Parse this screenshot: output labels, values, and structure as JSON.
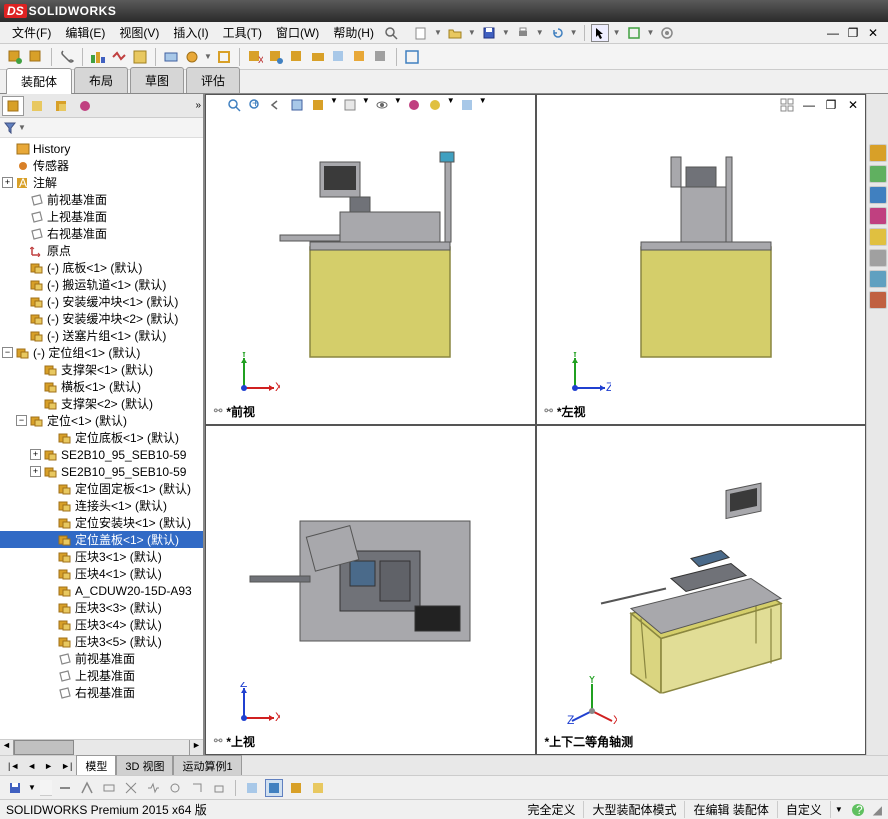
{
  "app": {
    "name": "SOLIDWORKS",
    "logo_ds": "DS"
  },
  "menubar": {
    "items": [
      "文件(F)",
      "编辑(E)",
      "视图(V)",
      "插入(I)",
      "工具(T)",
      "窗口(W)",
      "帮助(H)"
    ]
  },
  "ribbon": {
    "tabs": [
      "装配体",
      "布局",
      "草图",
      "评估"
    ],
    "active_index": 0
  },
  "sidebar": {
    "filter_icon": "▼",
    "tree": [
      {
        "indent": 0,
        "expander": "",
        "icon": "history",
        "icon_color": "#e8a838",
        "label": "History",
        "selected": false
      },
      {
        "indent": 0,
        "expander": "",
        "icon": "sensor",
        "icon_color": "#d88028",
        "label": "传感器",
        "selected": false
      },
      {
        "indent": 0,
        "expander": "+",
        "icon": "annot",
        "icon_color": "#d8a028",
        "label": "注解",
        "selected": false
      },
      {
        "indent": 1,
        "expander": "",
        "icon": "plane",
        "icon_color": "#888",
        "label": "前视基准面",
        "selected": false
      },
      {
        "indent": 1,
        "expander": "",
        "icon": "plane",
        "icon_color": "#888",
        "label": "上视基准面",
        "selected": false
      },
      {
        "indent": 1,
        "expander": "",
        "icon": "plane",
        "icon_color": "#888",
        "label": "右视基准面",
        "selected": false
      },
      {
        "indent": 1,
        "expander": "",
        "icon": "origin",
        "icon_color": "#c04040",
        "label": "原点",
        "selected": false
      },
      {
        "indent": 1,
        "expander": "",
        "icon": "asm",
        "icon_color": "#d8a028",
        "label": "(-) 底板<1> (默认)",
        "selected": false
      },
      {
        "indent": 1,
        "expander": "",
        "icon": "asm",
        "icon_color": "#d8a028",
        "label": "(-) 搬运轨道<1> (默认)",
        "selected": false
      },
      {
        "indent": 1,
        "expander": "",
        "icon": "asm",
        "icon_color": "#d8a028",
        "label": "(-) 安装缓冲块<1> (默认)",
        "selected": false
      },
      {
        "indent": 1,
        "expander": "",
        "icon": "asm",
        "icon_color": "#d8a028",
        "label": "(-) 安装缓冲块<2> (默认)",
        "selected": false
      },
      {
        "indent": 1,
        "expander": "",
        "icon": "asm",
        "icon_color": "#d8a028",
        "label": "(-) 送塞片组<1> (默认)",
        "selected": false
      },
      {
        "indent": 0,
        "expander": "-",
        "icon": "asm",
        "icon_color": "#d8a028",
        "label": "(-) 定位组<1> (默认)",
        "selected": false
      },
      {
        "indent": 2,
        "expander": "",
        "icon": "asm",
        "icon_color": "#d8a028",
        "label": "支撑架<1> (默认)",
        "selected": false
      },
      {
        "indent": 2,
        "expander": "",
        "icon": "asm",
        "icon_color": "#d8a028",
        "label": "横板<1> (默认)",
        "selected": false
      },
      {
        "indent": 2,
        "expander": "",
        "icon": "asm",
        "icon_color": "#d8a028",
        "label": "支撑架<2> (默认)",
        "selected": false
      },
      {
        "indent": 1,
        "expander": "-",
        "icon": "asm",
        "icon_color": "#d8a028",
        "label": "定位<1> (默认)",
        "selected": false
      },
      {
        "indent": 3,
        "expander": "",
        "icon": "part",
        "icon_color": "#d8a028",
        "label": "定位底板<1> (默认)",
        "selected": false
      },
      {
        "indent": 2,
        "expander": "+",
        "icon": "part",
        "icon_color": "#d8a028",
        "label": "SE2B10_95_SEB10-59",
        "selected": false
      },
      {
        "indent": 2,
        "expander": "+",
        "icon": "part",
        "icon_color": "#d8a028",
        "label": "SE2B10_95_SEB10-59",
        "selected": false
      },
      {
        "indent": 3,
        "expander": "",
        "icon": "part",
        "icon_color": "#d8a028",
        "label": "定位固定板<1> (默认)",
        "selected": false
      },
      {
        "indent": 3,
        "expander": "",
        "icon": "part",
        "icon_color": "#d8a028",
        "label": "连接头<1> (默认)",
        "selected": false
      },
      {
        "indent": 3,
        "expander": "",
        "icon": "part",
        "icon_color": "#d8a028",
        "label": "定位安装块<1> (默认)",
        "selected": false
      },
      {
        "indent": 3,
        "expander": "",
        "icon": "part",
        "icon_color": "#d8a028",
        "label": "定位盖板<1> (默认)",
        "selected": true
      },
      {
        "indent": 3,
        "expander": "",
        "icon": "part",
        "icon_color": "#d8a028",
        "label": "压块3<1> (默认)",
        "selected": false
      },
      {
        "indent": 3,
        "expander": "",
        "icon": "part",
        "icon_color": "#d8a028",
        "label": "压块4<1> (默认)",
        "selected": false
      },
      {
        "indent": 3,
        "expander": "",
        "icon": "part",
        "icon_color": "#d8a028",
        "label": "A_CDUW20-15D-A93",
        "selected": false
      },
      {
        "indent": 3,
        "expander": "",
        "icon": "part",
        "icon_color": "#d8a028",
        "label": "压块3<3> (默认)",
        "selected": false
      },
      {
        "indent": 3,
        "expander": "",
        "icon": "part",
        "icon_color": "#d8a028",
        "label": "压块3<4> (默认)",
        "selected": false
      },
      {
        "indent": 3,
        "expander": "",
        "icon": "part",
        "icon_color": "#d8a028",
        "label": "压块3<5> (默认)",
        "selected": false
      },
      {
        "indent": 3,
        "expander": "",
        "icon": "plane",
        "icon_color": "#888",
        "label": "前视基准面",
        "selected": false
      },
      {
        "indent": 3,
        "expander": "",
        "icon": "plane",
        "icon_color": "#888",
        "label": "上视基准面",
        "selected": false
      },
      {
        "indent": 3,
        "expander": "",
        "icon": "plane",
        "icon_color": "#888",
        "label": "右视基准面",
        "selected": false
      }
    ]
  },
  "bottom_tabs": {
    "items": [
      "模型",
      "3D 视图",
      "运动算例1"
    ],
    "active_index": 0
  },
  "views": {
    "panes": [
      {
        "label": "*前视",
        "triad": {
          "h_axis": "X",
          "h_color": "#d02020",
          "v_axis": "Y",
          "v_color": "#20a020"
        },
        "linked": true
      },
      {
        "label": "*左视",
        "triad": {
          "h_axis": "Z",
          "h_color": "#2040d0",
          "v_axis": "Y",
          "v_color": "#20a020"
        },
        "linked": true
      },
      {
        "label": "*上视",
        "triad": {
          "h_axis": "X",
          "h_color": "#d02020",
          "v_axis": "Z",
          "v_color": "#2040d0"
        },
        "linked": true
      },
      {
        "label": "*上下二等角轴测",
        "triad": {
          "iso": true
        },
        "linked": false
      }
    ],
    "model_colors": {
      "frame": "#d4ce6a",
      "frame_stroke": "#8a8640",
      "machine": "#a8a8ac",
      "machine_dark": "#707278"
    }
  },
  "right_rail_colors": [
    "#d8a028",
    "#60b060",
    "#4080c0",
    "#c04080",
    "#e0c040",
    "#a0a0a0",
    "#60a0c0",
    "#c06040"
  ],
  "statusbar": {
    "version": "SOLIDWORKS Premium 2015 x64 版",
    "cells": [
      "完全定义",
      "大型装配体模式",
      "在编辑 装配体",
      "自定义"
    ]
  }
}
